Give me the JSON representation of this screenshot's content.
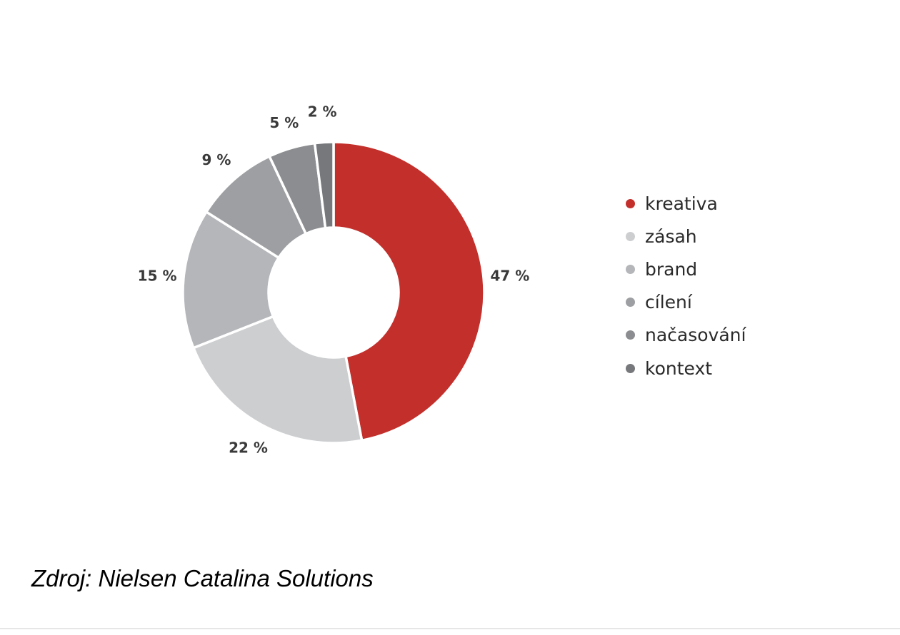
{
  "chart_data": {
    "type": "pie",
    "donut": true,
    "title": "",
    "categories": [
      "kreativa",
      "zásah",
      "brand",
      "cílení",
      "načasování",
      "kontext"
    ],
    "values": [
      47,
      22,
      15,
      9,
      5,
      2
    ],
    "value_labels": [
      "47 %",
      "22 %",
      "15 %",
      "9 %",
      "5 %",
      "2 %"
    ],
    "colors": [
      "#c3302c",
      "#cdced0",
      "#b4b6b9",
      "#9d9fa2",
      "#8b8d90",
      "#76787b"
    ],
    "start_angle_deg": 0,
    "direction": "clockwise",
    "legend_position": "right"
  },
  "source": {
    "text": "Zdroj: Nielsen Catalina Solutions"
  }
}
